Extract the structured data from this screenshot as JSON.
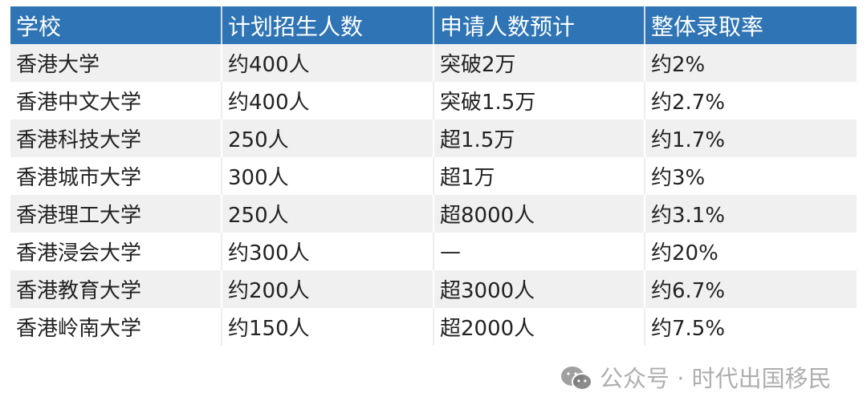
{
  "table": {
    "headers": [
      "学校",
      "计划招生人数",
      "申请人数预计",
      "整体录取率"
    ],
    "rows": [
      [
        "香港大学",
        "约400人",
        "突破2万",
        "约2%"
      ],
      [
        "香港中文大学",
        "约400人",
        "突破1.5万",
        "约2.7%"
      ],
      [
        "香港科技大学",
        "250人",
        "超1.5万",
        "约1.7%"
      ],
      [
        "香港城市大学",
        "300人",
        "超1万",
        "约3%"
      ],
      [
        "香港理工大学",
        "250人",
        "超8000人",
        "约3.1%"
      ],
      [
        "香港浸会大学",
        "约300人",
        "—",
        "约20%"
      ],
      [
        "香港教育大学",
        "约200人",
        "超3000人",
        "约6.7%"
      ],
      [
        "香港岭南大学",
        "约150人",
        "超2000人",
        "约7.5%"
      ]
    ]
  },
  "watermark": {
    "text": "公众号 · 时代出国移民",
    "icon": "wechat-icon"
  },
  "colors": {
    "header_bg": "#2f74b5",
    "header_text": "#ffffff",
    "stripe": "#f0f0f0"
  }
}
